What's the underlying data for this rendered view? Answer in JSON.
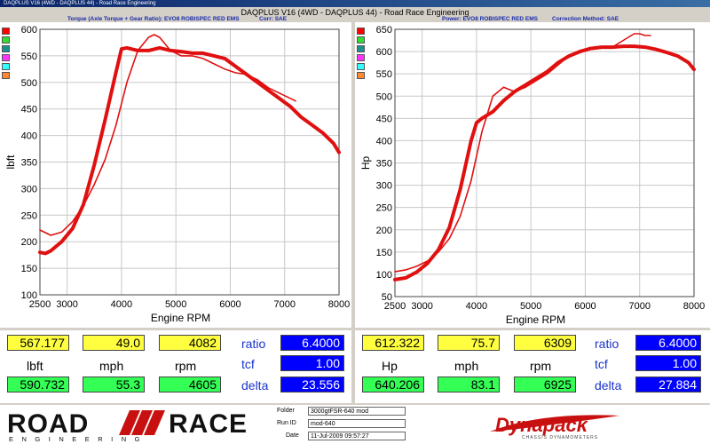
{
  "window": {
    "titlebar": "DAQPLUS V16 (4WD - DAQPLUS 44) - Road Race Engineering"
  },
  "header": {
    "title": "DAQPLUS V16 (4WD - DAQPLUS 44) - Road Race Engineering",
    "left_subtitle_a": "Torque (Axle Torque + Gear Ratio): EVO8 ROBISPEC RED EMS",
    "left_subtitle_b": "Corr: SAE",
    "right_subtitle_a": "Power: EVO8 ROBISPEC RED EMS",
    "right_subtitle_b": "Correction Method: SAE"
  },
  "swatch_colors": [
    "#ff0000",
    "#33dd33",
    "#1a9090",
    "#ff33ff",
    "#33ffff",
    "#ff8833"
  ],
  "chart_data": [
    {
      "type": "line",
      "xlabel": "Engine RPM",
      "ylabel": "lbft",
      "xlim": [
        2500,
        8000
      ],
      "ylim": [
        100,
        600
      ],
      "x_ticks": [
        "2500",
        "3000",
        "4000",
        "5000",
        "6000",
        "7000",
        "8000"
      ],
      "x_tick_values": [
        2500,
        3000,
        4000,
        5000,
        6000,
        7000,
        8000
      ],
      "y_ticks": [
        "100",
        "150",
        "200",
        "250",
        "300",
        "350",
        "400",
        "450",
        "500",
        "550",
        "600"
      ],
      "y_tick_values": [
        100,
        150,
        200,
        250,
        300,
        350,
        400,
        450,
        500,
        550,
        600
      ],
      "series": [
        {
          "color": "#e01010",
          "width": 4,
          "x": [
            2500,
            2600,
            2700,
            2900,
            3100,
            3300,
            3500,
            3700,
            3900,
            4000,
            4100,
            4300,
            4500,
            4700,
            4900,
            5100,
            5300,
            5500,
            5700,
            5900,
            6100,
            6300,
            6500,
            6700,
            6900,
            7100,
            7300,
            7500,
            7700,
            7900,
            8000
          ],
          "y": [
            180,
            178,
            183,
            200,
            225,
            270,
            345,
            430,
            520,
            563,
            565,
            560,
            560,
            565,
            560,
            558,
            555,
            555,
            550,
            545,
            530,
            515,
            500,
            485,
            470,
            455,
            435,
            420,
            405,
            385,
            368
          ]
        },
        {
          "color": "#e01010",
          "width": 1.6,
          "x": [
            2500,
            2700,
            2900,
            3100,
            3300,
            3500,
            3700,
            3900,
            4100,
            4300,
            4500,
            4600,
            4700,
            4900,
            5100,
            5300,
            5500,
            5700,
            5900,
            6100,
            6300,
            6500,
            6700,
            6900,
            7100,
            7200
          ],
          "y": [
            222,
            212,
            218,
            238,
            268,
            308,
            355,
            420,
            500,
            560,
            585,
            590,
            585,
            560,
            550,
            550,
            545,
            535,
            525,
            518,
            515,
            505,
            490,
            480,
            470,
            465
          ]
        }
      ]
    },
    {
      "type": "line",
      "xlabel": "Engine RPM",
      "ylabel": "Hp",
      "xlim": [
        2500,
        8000
      ],
      "ylim": [
        50,
        650
      ],
      "x_ticks": [
        "2500",
        "3000",
        "4000",
        "5000",
        "6000",
        "7000",
        "8000"
      ],
      "x_tick_values": [
        2500,
        3000,
        4000,
        5000,
        6000,
        7000,
        8000
      ],
      "y_ticks": [
        "50",
        "100",
        "150",
        "200",
        "250",
        "300",
        "350",
        "400",
        "450",
        "500",
        "550",
        "600",
        "650"
      ],
      "y_tick_values": [
        50,
        100,
        150,
        200,
        250,
        300,
        350,
        400,
        450,
        500,
        550,
        600,
        650
      ],
      "series": [
        {
          "color": "#e01010",
          "width": 4,
          "x": [
            2500,
            2700,
            2900,
            3100,
            3300,
            3500,
            3700,
            3900,
            4000,
            4100,
            4300,
            4500,
            4700,
            4900,
            5100,
            5300,
            5500,
            5700,
            5900,
            6100,
            6300,
            6500,
            6700,
            6900,
            7100,
            7300,
            7500,
            7700,
            7900,
            8000
          ],
          "y": [
            88,
            92,
            105,
            125,
            155,
            205,
            290,
            400,
            440,
            450,
            465,
            490,
            510,
            525,
            540,
            555,
            575,
            590,
            600,
            607,
            610,
            610,
            612,
            612,
            610,
            605,
            598,
            590,
            575,
            560
          ]
        },
        {
          "color": "#e01010",
          "width": 1.6,
          "x": [
            2500,
            2700,
            2900,
            3100,
            3300,
            3500,
            3700,
            3900,
            4100,
            4300,
            4500,
            4700,
            4900,
            5100,
            5300,
            5500,
            5700,
            5900,
            6100,
            6300,
            6500,
            6700,
            6900,
            7000,
            7100,
            7200
          ],
          "y": [
            106,
            110,
            118,
            130,
            150,
            180,
            230,
            310,
            420,
            500,
            520,
            510,
            520,
            535,
            550,
            570,
            590,
            600,
            605,
            608,
            610,
            625,
            640,
            640,
            636,
            636
          ]
        }
      ]
    }
  ],
  "readouts": {
    "left": {
      "top_values": [
        "567.177",
        "49.0",
        "4082"
      ],
      "units": [
        "lbft",
        "mph",
        "rpm"
      ],
      "bottom_values": [
        "590.732",
        "55.3",
        "4605"
      ],
      "param_labels": [
        "ratio",
        "tcf",
        "delta"
      ],
      "param_values": [
        "6.4000",
        "1.00",
        "23.556"
      ]
    },
    "right": {
      "top_values": [
        "612.322",
        "75.7",
        "6309"
      ],
      "units": [
        "Hp",
        "mph",
        "rpm"
      ],
      "bottom_values": [
        "640.206",
        "83.1",
        "6925"
      ],
      "param_labels": [
        "ratio",
        "tcf",
        "delta"
      ],
      "param_values": [
        "6.4000",
        "1.00",
        "27.884"
      ]
    }
  },
  "footer": {
    "logo_top": "ROAD",
    "logo_top2": "RACE",
    "logo_bottom": "ENGINEERING",
    "folder_label": "Folder",
    "folder_value": "3000gtFSR-640 mod",
    "runid_label": "Run ID",
    "runid_value": "mod-640",
    "date_label": "Date",
    "date_value": "11-Jul-2009  09:57:27",
    "brand": "Dynapack",
    "brand_sub": "CHASSIS DYNAMOMETERS"
  }
}
